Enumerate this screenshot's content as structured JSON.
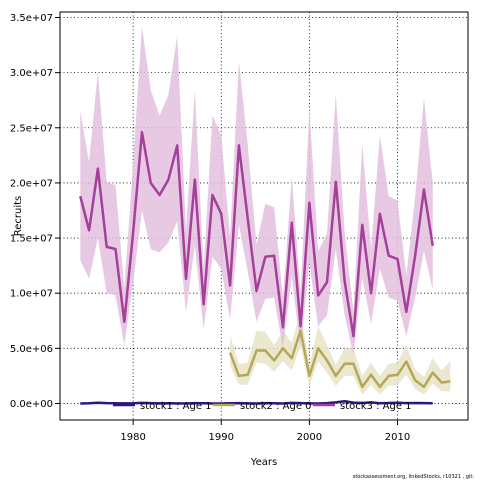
{
  "chart_data": {
    "type": "line",
    "xlabel": "Years",
    "ylabel": "Recruits",
    "xlim": [
      1971.7,
      2018.0
    ],
    "ylim": [
      -1500000,
      35500000
    ],
    "x_ticks": [
      1980,
      1990,
      2000,
      2010
    ],
    "x_tick_labels": [
      "1980",
      "1990",
      "2000",
      "2010"
    ],
    "y_ticks": [
      0,
      5000000,
      10000000,
      15000000,
      20000000,
      25000000,
      30000000,
      35000000
    ],
    "y_tick_labels": [
      "0.0e+00",
      "5.0e+06",
      "1.0e+07",
      "1.5e+07",
      "2.0e+07",
      "2.5e+07",
      "3.0e+07",
      "3.5e+07"
    ],
    "grid": true,
    "legend_position": "bottom",
    "caption": "stockassessment.org, linkedStocks, r10321 , git:",
    "series": [
      {
        "name": "stock1 : Age 1",
        "color": "#30177a",
        "band_color": "#aaa4cc",
        "x": [
          1974,
          1975,
          1976,
          1977,
          1978,
          1979,
          1980,
          1981,
          1982,
          1983,
          1984,
          1985,
          1986,
          1987,
          1988,
          1989,
          1990,
          1991,
          1992,
          1993,
          1994,
          1995,
          1996,
          1997,
          1998,
          1999,
          2000,
          2001,
          2002,
          2003,
          2004,
          2005,
          2006,
          2007,
          2008,
          2009,
          2010,
          2011,
          2012,
          2013,
          2014
        ],
        "values": [
          0,
          20000,
          60000,
          30000,
          20000,
          10000,
          20000,
          50000,
          30000,
          10000,
          20000,
          10000,
          0,
          30000,
          20000,
          0,
          0,
          20000,
          30000,
          10000,
          0,
          30000,
          20000,
          0,
          50000,
          30000,
          10000,
          0,
          30000,
          100000,
          200000,
          80000,
          40000,
          100000,
          20000,
          40000,
          60000,
          30000,
          40000,
          30000,
          20000
        ],
        "lower": [
          -60000,
          -60000,
          -30000,
          -50000,
          -60000,
          -70000,
          -60000,
          -30000,
          -50000,
          -70000,
          -60000,
          -70000,
          -80000,
          -50000,
          -60000,
          -80000,
          -80000,
          -60000,
          -50000,
          -70000,
          -80000,
          -50000,
          -60000,
          -80000,
          -30000,
          -50000,
          -70000,
          -80000,
          -50000,
          0,
          80000,
          -10000,
          -40000,
          0,
          -60000,
          -40000,
          -20000,
          -50000,
          -40000,
          -50000,
          -60000
        ],
        "upper": [
          60000,
          90000,
          150000,
          110000,
          100000,
          90000,
          100000,
          140000,
          110000,
          90000,
          100000,
          90000,
          80000,
          110000,
          100000,
          80000,
          80000,
          100000,
          110000,
          90000,
          80000,
          110000,
          100000,
          80000,
          140000,
          110000,
          90000,
          80000,
          110000,
          200000,
          320000,
          170000,
          120000,
          200000,
          100000,
          120000,
          140000,
          110000,
          120000,
          110000,
          100000
        ]
      },
      {
        "name": "stock2 : Age 0",
        "color": "#b4a858",
        "band_color": "#e9e4c7",
        "x": [
          1991,
          1992,
          1993,
          1994,
          1995,
          1996,
          1997,
          1998,
          1999,
          2000,
          2001,
          2002,
          2003,
          2004,
          2005,
          2006,
          2007,
          2008,
          2009,
          2010,
          2011,
          2012,
          2013,
          2014,
          2015,
          2016
        ],
        "values": [
          4600000,
          2500000,
          2600000,
          4800000,
          4800000,
          3900000,
          5000000,
          4100000,
          6600000,
          2500000,
          5000000,
          3900000,
          2500000,
          3600000,
          3600000,
          1500000,
          2600000,
          1500000,
          2500000,
          2600000,
          3800000,
          2100000,
          1500000,
          2800000,
          1900000,
          2000000
        ],
        "lower": [
          3400000,
          1700000,
          1700000,
          3700000,
          3600000,
          2900000,
          3800000,
          3000000,
          5200000,
          1600000,
          3800000,
          2800000,
          1600000,
          2500000,
          2500000,
          800000,
          1700000,
          800000,
          1600000,
          1700000,
          2600000,
          1300000,
          800000,
          1800000,
          1100000,
          1100000
        ],
        "upper": [
          6200000,
          3600000,
          3700000,
          6600000,
          6500000,
          5300000,
          6600000,
          5500000,
          8400000,
          3500000,
          7000000,
          5300000,
          3500000,
          5000000,
          5000000,
          2500000,
          3700000,
          2500000,
          3600000,
          3700000,
          5300000,
          3100000,
          2400000,
          4100000,
          3000000,
          3900000
        ]
      },
      {
        "name": "stock3 : Age 1",
        "color": "#a5409a",
        "band_color": "#e3bfde",
        "x": [
          1974,
          1975,
          1976,
          1977,
          1978,
          1979,
          1980,
          1981,
          1982,
          1983,
          1984,
          1985,
          1986,
          1987,
          1988,
          1989,
          1990,
          1991,
          1992,
          1993,
          1994,
          1995,
          1996,
          1997,
          1998,
          1999,
          2000,
          2001,
          2002,
          2003,
          2004,
          2005,
          2006,
          2007,
          2008,
          2009,
          2010,
          2011,
          2012,
          2013,
          2014
        ],
        "values": [
          18800000,
          15700000,
          21300000,
          14200000,
          14000000,
          7400000,
          15500000,
          24600000,
          20000000,
          18900000,
          20300000,
          23400000,
          11300000,
          20300000,
          9000000,
          18900000,
          17200000,
          10700000,
          23400000,
          16800000,
          10200000,
          13300000,
          13400000,
          6900000,
          16400000,
          7000000,
          18200000,
          9800000,
          11000000,
          20100000,
          11100000,
          6100000,
          16200000,
          10000000,
          17200000,
          13400000,
          13100000,
          8300000,
          13400000,
          19400000,
          14300000
        ],
        "lower": [
          13000000,
          11300000,
          15000000,
          10000000,
          9800000,
          5300000,
          11000000,
          17500000,
          14000000,
          13700000,
          14600000,
          16500000,
          8300000,
          14300000,
          6700000,
          13300000,
          12200000,
          7600000,
          16200000,
          12000000,
          7400000,
          9500000,
          9600000,
          5000000,
          11500000,
          5000000,
          12700000,
          7000000,
          8000000,
          14000000,
          8000000,
          4400000,
          11400000,
          7200000,
          12200000,
          9600000,
          9300000,
          6100000,
          9600000,
          13800000,
          10300000
        ],
        "upper": [
          26500000,
          21900000,
          30100000,
          20100000,
          19800000,
          10400000,
          21900000,
          34200000,
          28400000,
          26100000,
          28000000,
          33300000,
          15700000,
          28400000,
          12200000,
          26100000,
          24300000,
          15100000,
          31000000,
          23500000,
          14400000,
          18100000,
          17800000,
          9600000,
          20600000,
          10000000,
          26700000,
          13800000,
          15400000,
          28100000,
          15500000,
          8300000,
          23500000,
          14000000,
          24300000,
          18800000,
          18400000,
          11600000,
          18700000,
          27700000,
          20000000
        ]
      }
    ]
  }
}
